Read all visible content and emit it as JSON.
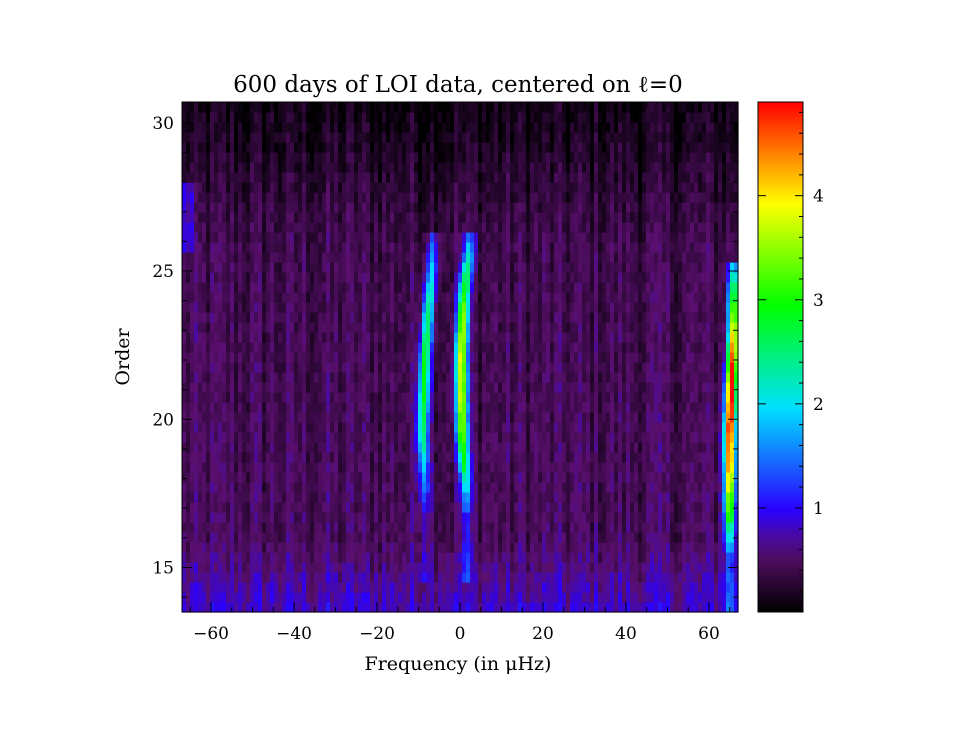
{
  "chart_data": [
    {
      "type": "heatmap",
      "title": "600 days of LOI data, centered on ℓ=0",
      "xlabel": "Frequency (in μHz)",
      "ylabel": "Order",
      "xlim": [
        -67,
        67
      ],
      "ylim": [
        13.5,
        30.7
      ],
      "xticks": [
        -60,
        -40,
        -20,
        0,
        20,
        40,
        60
      ],
      "yticks": [
        15,
        20,
        25,
        30
      ],
      "ridges": [
        {
          "name": "left ridge",
          "x": [
            -8.5,
            -9,
            -8.5,
            -7.5,
            -6.5
          ],
          "y": [
            17.5,
            19.5,
            22,
            24,
            25.8
          ],
          "peak": 2.5
        },
        {
          "name": "center ridge",
          "x": [
            1.5,
            0.5,
            0.3,
            0.8,
            2.2
          ],
          "y": [
            17.5,
            19.5,
            22,
            24,
            25.8
          ],
          "peak": 3.5
        },
        {
          "name": "right ridge",
          "x": [
            65,
            65,
            65.5,
            66,
            66
          ],
          "y": [
            16,
            19.5,
            21.5,
            23,
            25
          ],
          "peak": 4.6
        }
      ],
      "colorscale": [
        "#000000",
        "#5a0f6e",
        "#2a00ff",
        "#00e0ff",
        "#00ff00",
        "#ffff00",
        "#ff0000"
      ],
      "vmin": 0,
      "vmax": 4.9
    },
    {
      "type": "colorbar",
      "ticks": [
        1,
        2,
        3,
        4
      ],
      "ylim": [
        0,
        4.9
      ]
    }
  ]
}
